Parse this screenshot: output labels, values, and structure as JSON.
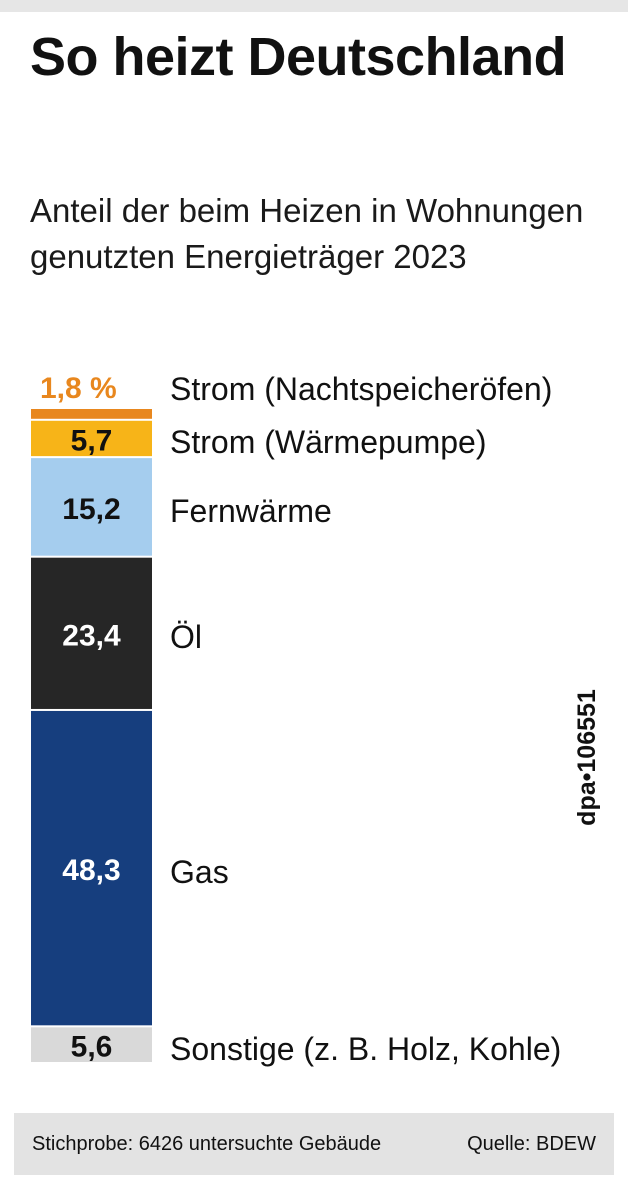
{
  "header": {
    "title": "So heizt Deutschland",
    "subtitle": "Anteil der beim Heizen in Wohnungen genutzten Energieträger 2023"
  },
  "credit": "dpa•106551",
  "footer": {
    "sample": "Stichprobe: 6426 untersuchte Gebäude",
    "source": "Quelle: BDEW"
  },
  "chart_data": {
    "type": "bar",
    "orientation": "stacked-vertical",
    "unit": "%",
    "title": "So heizt Deutschland",
    "subtitle": "Anteil der beim Heizen in Wohnungen genutzten Energieträger 2023",
    "categories": [
      "Strom (Nachtspeicheröfen)",
      "Strom (Wärmepumpe)",
      "Fernwärme",
      "Öl",
      "Gas",
      "Sonstige (z. B. Holz, Kohle)"
    ],
    "values": [
      1.8,
      5.7,
      15.2,
      23.4,
      48.3,
      5.6
    ],
    "value_labels": [
      "1,8 %",
      "5,7",
      "15,2",
      "23,4",
      "48,3",
      "5,6"
    ],
    "colors": [
      "#e8871e",
      "#f7b418",
      "#a5cdee",
      "#262626",
      "#163e7e",
      "#d9d9d9"
    ],
    "label_colors": [
      "#e8871e",
      "#111111",
      "#111111",
      "#ffffff",
      "#ffffff",
      "#111111"
    ],
    "legend": "none"
  }
}
